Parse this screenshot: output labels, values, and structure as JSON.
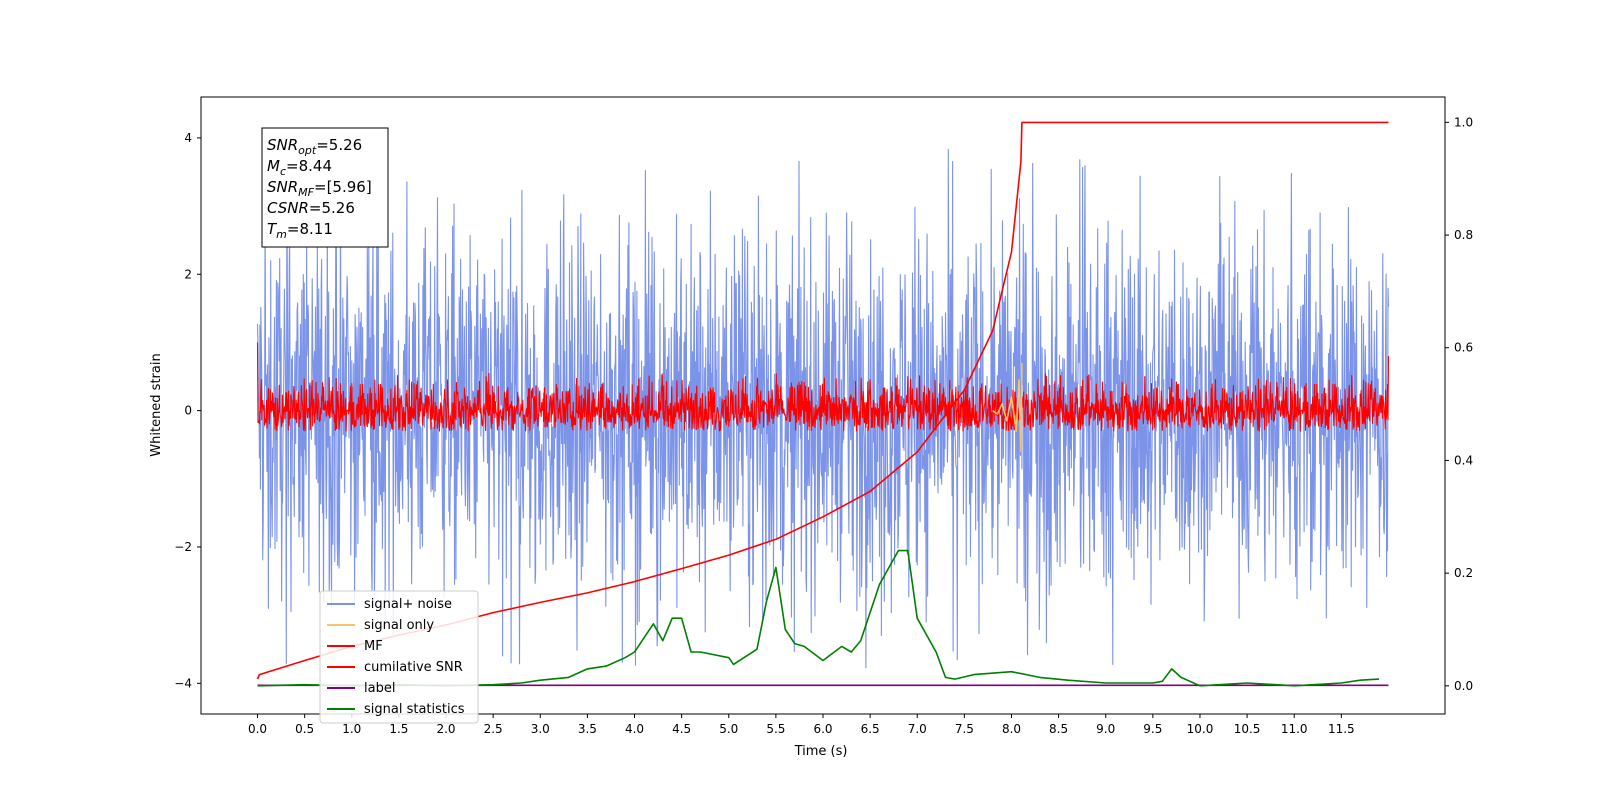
{
  "chart_data": {
    "type": "line",
    "xlabel": "Time (s)",
    "ylabel": "Whitened strain",
    "xlim": [
      -0.6,
      12.6
    ],
    "ylim": [
      -4.45,
      4.6
    ],
    "ylim_right": [
      -0.05,
      1.045
    ],
    "x_ticks": [
      0.0,
      0.5,
      1.0,
      1.5,
      2.0,
      2.5,
      3.0,
      3.5,
      4.0,
      4.5,
      5.0,
      5.5,
      6.0,
      6.5,
      7.0,
      7.5,
      8.0,
      8.5,
      9.0,
      9.5,
      10.0,
      10.5,
      11.0,
      11.5
    ],
    "x_tick_labels": [
      "0.0",
      "0.5",
      "1.0",
      "1.5",
      "2.0",
      "2.5",
      "3.0",
      "3.5",
      "4.0",
      "4.5",
      "5.0",
      "5.5",
      "6.0",
      "6.5",
      "7.0",
      "7.5",
      "8.0",
      "8.5",
      "9.0",
      "9.5",
      "10.0",
      "10.5",
      "11.0",
      "11.5"
    ],
    "y_ticks": [
      -4,
      -2,
      0,
      2,
      4
    ],
    "y_tick_labels": [
      "−4",
      "−2",
      "0",
      "2",
      "4"
    ],
    "y_ticks_right": [
      0.0,
      0.2,
      0.4,
      0.6,
      0.8,
      1.0
    ],
    "y_tick_labels_right": [
      "0.0",
      "0.2",
      "0.4",
      "0.6",
      "0.8",
      "1.0"
    ],
    "grid": false,
    "legend_position": "lower-left",
    "annotation": {
      "lines": [
        {
          "sym": "SNR",
          "sub": "opt",
          "value": "=5.26"
        },
        {
          "sym": "M",
          "sub": "c",
          "value": "=8.44"
        },
        {
          "sym": "SNR",
          "sub": "MF",
          "value": "=[5.96]"
        },
        {
          "sym": "CSNR",
          "sub": "",
          "value": "=5.26"
        },
        {
          "sym": "T",
          "sub": "m",
          "value": "=8.11"
        }
      ]
    },
    "series": [
      {
        "name": "signal+ noise",
        "color": "#7b93e8",
        "axis": "left",
        "kind": "noise",
        "x_range": [
          0.0,
          12.0
        ],
        "band": [
          -1.5,
          1.5
        ],
        "peak_range": [
          -3.8,
          4.15
        ]
      },
      {
        "name": "signal only",
        "color": "#f5c56a",
        "axis": "left",
        "x": [
          7.8,
          7.85,
          7.9,
          7.95,
          8.0,
          8.05,
          8.08,
          8.1,
          8.11
        ],
        "y": [
          0.0,
          -0.05,
          0.1,
          -0.15,
          0.2,
          -0.3,
          0.45,
          -0.6,
          0.7
        ]
      },
      {
        "name": "MF",
        "color": "#ff0000",
        "axis": "left",
        "kind": "noise",
        "x_range": [
          0.0,
          12.0
        ],
        "band": [
          -0.25,
          0.25
        ],
        "peak_range": [
          -0.3,
          0.55
        ],
        "edges": [
          1.0,
          0.8
        ]
      },
      {
        "name": "cumilative SNR",
        "color": "#ff0000",
        "axis": "right",
        "x": [
          0.0,
          0.02,
          0.5,
          1.0,
          1.5,
          2.0,
          2.5,
          3.0,
          3.5,
          4.0,
          4.5,
          5.0,
          5.5,
          6.0,
          6.5,
          7.0,
          7.5,
          7.8,
          8.0,
          8.1,
          8.11,
          12.0
        ],
        "y": [
          0.012,
          0.02,
          0.045,
          0.07,
          0.09,
          0.108,
          0.13,
          0.148,
          0.165,
          0.185,
          0.208,
          0.232,
          0.26,
          0.3,
          0.345,
          0.415,
          0.525,
          0.63,
          0.77,
          0.93,
          1.0,
          1.0
        ]
      },
      {
        "name": "label",
        "color": "#800080",
        "axis": "right",
        "x": [
          0.0,
          12.0
        ],
        "y": [
          0.001,
          0.001
        ]
      },
      {
        "name": "signal statistics",
        "color": "#008000",
        "axis": "right",
        "x": [
          0.0,
          0.5,
          1.0,
          1.5,
          2.0,
          2.5,
          2.8,
          3.0,
          3.3,
          3.5,
          3.7,
          3.9,
          4.0,
          4.2,
          4.3,
          4.4,
          4.5,
          4.6,
          4.7,
          5.0,
          5.05,
          5.3,
          5.4,
          5.5,
          5.6,
          5.7,
          5.8,
          6.0,
          6.2,
          6.3,
          6.4,
          6.6,
          6.8,
          6.9,
          7.0,
          7.2,
          7.3,
          7.4,
          7.6,
          8.0,
          8.3,
          8.6,
          9.0,
          9.5,
          9.6,
          9.7,
          9.8,
          10.0,
          10.5,
          11.0,
          11.5,
          11.7,
          11.9
        ],
        "y": [
          0.0,
          0.002,
          0.0,
          0.002,
          0.0,
          0.002,
          0.005,
          0.01,
          0.015,
          0.03,
          0.035,
          0.05,
          0.06,
          0.11,
          0.08,
          0.12,
          0.12,
          0.06,
          0.06,
          0.05,
          0.038,
          0.065,
          0.15,
          0.21,
          0.1,
          0.075,
          0.07,
          0.045,
          0.07,
          0.06,
          0.08,
          0.18,
          0.24,
          0.24,
          0.12,
          0.06,
          0.015,
          0.012,
          0.02,
          0.025,
          0.015,
          0.01,
          0.005,
          0.005,
          0.008,
          0.03,
          0.015,
          0.0,
          0.005,
          0.0,
          0.005,
          0.01,
          0.012
        ]
      }
    ]
  }
}
